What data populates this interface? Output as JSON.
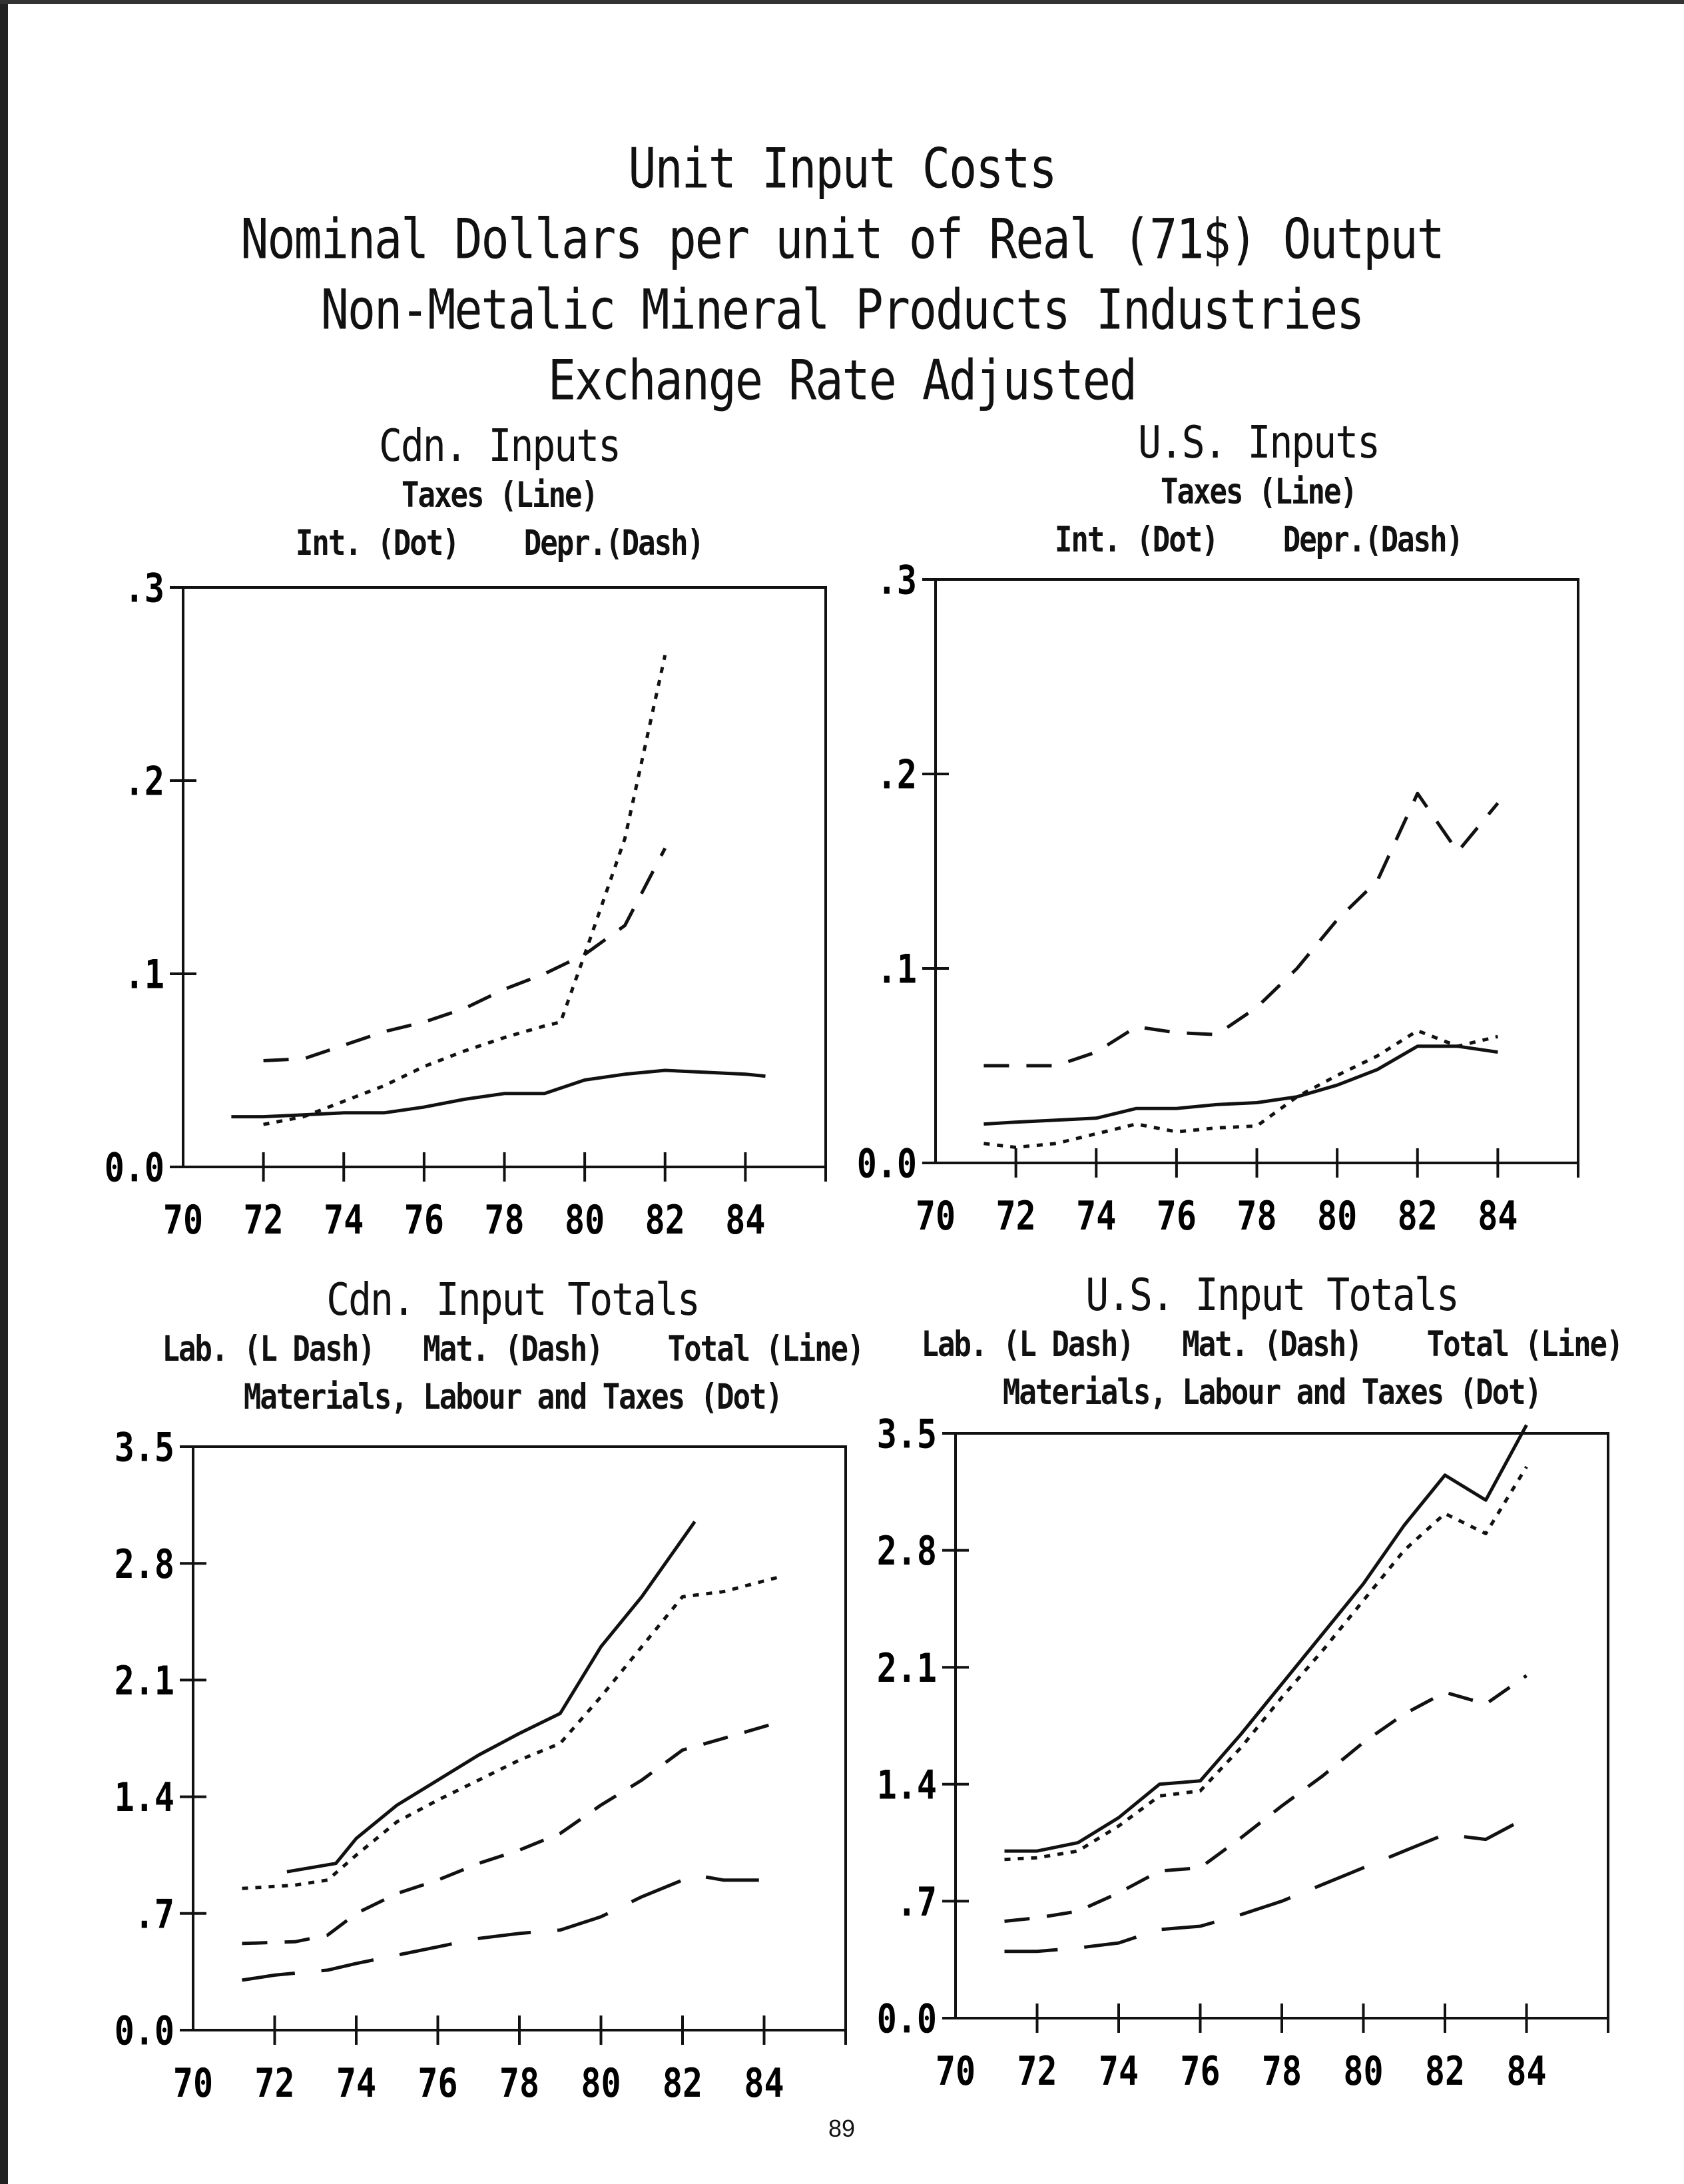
{
  "title_lines": [
    "Unit Input Costs",
    "Nominal Dollars per unit of Real (71$) Output",
    "Non-Metalic Mineral Products Industries",
    "Exchange Rate Adjusted"
  ],
  "page_number": "89",
  "chart_data": [
    {
      "type": "line",
      "title": "Cdn. Inputs",
      "subtitle_lines": [
        "Taxes (Line)"
      ],
      "legend_line": "Int. (Dot)    Depr.(Dash)",
      "x_ticks": [
        "70",
        "72",
        "74",
        "76",
        "78",
        "80",
        "82",
        "84"
      ],
      "y_ticks": [
        "0.0",
        ".1",
        ".2",
        ".3"
      ],
      "xlim": [
        70,
        86
      ],
      "ylim": [
        0,
        0.3
      ],
      "series": [
        {
          "name": "Taxes (Line)",
          "style": "solid",
          "x": [
            71.2,
            72,
            73,
            74,
            75,
            76,
            77,
            78,
            79,
            80,
            81,
            82,
            83,
            84,
            84.5
          ],
          "y": [
            0.026,
            0.026,
            0.027,
            0.028,
            0.028,
            0.031,
            0.035,
            0.038,
            0.038,
            0.045,
            0.048,
            0.05,
            0.049,
            0.048,
            0.047
          ]
        },
        {
          "name": "Int. (Dot)",
          "style": "dot",
          "x": [
            72,
            73,
            74,
            75,
            76,
            77,
            78,
            79,
            79.4,
            80,
            81,
            82
          ],
          "y": [
            0.022,
            0.026,
            0.034,
            0.042,
            0.052,
            0.06,
            0.067,
            0.073,
            0.075,
            0.11,
            0.17,
            0.265
          ]
        },
        {
          "name": "Depr.(Dash)",
          "style": "dash",
          "x": [
            72,
            73,
            74,
            75,
            76,
            77,
            78,
            79,
            80,
            81,
            82
          ],
          "y": [
            0.055,
            0.056,
            0.063,
            0.07,
            0.075,
            0.082,
            0.092,
            0.1,
            0.11,
            0.125,
            0.165
          ]
        }
      ]
    },
    {
      "type": "line",
      "title": "U.S. Inputs",
      "subtitle_lines": [
        "Taxes (Line)"
      ],
      "legend_line": "Int. (Dot)    Depr.(Dash)",
      "x_ticks": [
        "70",
        "72",
        "74",
        "76",
        "78",
        "80",
        "82",
        "84"
      ],
      "y_ticks": [
        "0.0",
        ".1",
        ".2",
        ".3"
      ],
      "xlim": [
        70,
        86
      ],
      "ylim": [
        0,
        0.3
      ],
      "series": [
        {
          "name": "Taxes (Line)",
          "style": "solid",
          "x": [
            71.2,
            72,
            73,
            74,
            75,
            76,
            77,
            78,
            79,
            80,
            81,
            82,
            83,
            84
          ],
          "y": [
            0.02,
            0.021,
            0.022,
            0.023,
            0.028,
            0.028,
            0.03,
            0.031,
            0.034,
            0.04,
            0.048,
            0.06,
            0.06,
            0.057
          ]
        },
        {
          "name": "Int. (Dot)",
          "style": "dot",
          "x": [
            71.2,
            72,
            73,
            74,
            75,
            76,
            77,
            78,
            79,
            80,
            81,
            82,
            83,
            84
          ],
          "y": [
            0.01,
            0.008,
            0.01,
            0.015,
            0.02,
            0.016,
            0.018,
            0.019,
            0.034,
            0.045,
            0.055,
            0.068,
            0.06,
            0.065
          ]
        },
        {
          "name": "Depr.(Dash)",
          "style": "dash",
          "x": [
            71.2,
            72,
            73,
            74,
            75,
            76,
            77,
            78,
            79,
            80,
            81,
            82,
            83,
            84
          ],
          "y": [
            0.05,
            0.05,
            0.05,
            0.057,
            0.07,
            0.067,
            0.066,
            0.08,
            0.1,
            0.125,
            0.145,
            0.19,
            0.16,
            0.185
          ]
        }
      ]
    },
    {
      "type": "line",
      "title": "Cdn. Input Totals",
      "subtitle_lines": [],
      "legend_line": "Lab. (L Dash)   Mat. (Dash)    Total (Line)",
      "legend_line_2": "Materials, Labour and Taxes (Dot)",
      "x_ticks": [
        "70",
        "72",
        "74",
        "76",
        "78",
        "80",
        "82",
        "84"
      ],
      "y_ticks": [
        "0.0",
        ".7",
        "1.4",
        "2.1",
        "2.8",
        "3.5"
      ],
      "xlim": [
        70,
        86
      ],
      "ylim": [
        0,
        3.5
      ],
      "series": [
        {
          "name": "Total (Line)",
          "style": "solid",
          "x": [
            72.3,
            73.5,
            74,
            75,
            76,
            77,
            78,
            79,
            80,
            81,
            82.3
          ],
          "y": [
            0.95,
            1.0,
            1.15,
            1.35,
            1.5,
            1.65,
            1.78,
            1.9,
            2.3,
            2.6,
            3.05
          ]
        },
        {
          "name": "Materials, Labour and Taxes (Dot)",
          "style": "dot",
          "x": [
            71.2,
            72.5,
            73.3,
            74,
            75,
            76,
            77,
            78,
            79,
            80,
            81,
            82,
            83,
            84.4
          ],
          "y": [
            0.85,
            0.87,
            0.9,
            1.05,
            1.25,
            1.38,
            1.5,
            1.62,
            1.72,
            2.0,
            2.3,
            2.6,
            2.63,
            2.72
          ]
        },
        {
          "name": "Mat. (Dash)",
          "style": "dash",
          "x": [
            71.2,
            72.5,
            73.3,
            74,
            75,
            76,
            77,
            78,
            79,
            80,
            81,
            82,
            83,
            84.4
          ],
          "y": [
            0.52,
            0.53,
            0.57,
            0.7,
            0.82,
            0.9,
            1.0,
            1.08,
            1.18,
            1.35,
            1.5,
            1.68,
            1.75,
            1.85
          ]
        },
        {
          "name": "Lab. (L Dash)",
          "style": "longdash",
          "x": [
            71.2,
            72,
            73.3,
            74,
            75,
            76,
            77,
            78,
            79,
            80,
            81,
            82.3,
            83,
            84.4
          ],
          "y": [
            0.3,
            0.33,
            0.36,
            0.4,
            0.45,
            0.5,
            0.55,
            0.58,
            0.6,
            0.68,
            0.8,
            0.93,
            0.9,
            0.9
          ]
        }
      ]
    },
    {
      "type": "line",
      "title": "U.S. Input Totals",
      "subtitle_lines": [],
      "legend_line": "Lab. (L Dash)   Mat. (Dash)    Total (Line)",
      "legend_line_2": "Materials, Labour and Taxes (Dot)",
      "x_ticks": [
        "70",
        "72",
        "74",
        "76",
        "78",
        "80",
        "82",
        "84"
      ],
      "y_ticks": [
        "0.0",
        ".7",
        "1.4",
        "2.1",
        "2.8",
        "3.5"
      ],
      "xlim": [
        70,
        86
      ],
      "ylim": [
        0,
        3.5
      ],
      "series": [
        {
          "name": "Total (Line)",
          "style": "solid",
          "x": [
            71.2,
            72,
            73,
            74,
            75,
            76,
            77,
            78,
            79,
            80,
            81,
            82,
            83,
            84
          ],
          "y": [
            1.0,
            1.0,
            1.05,
            1.2,
            1.4,
            1.42,
            1.7,
            2.0,
            2.3,
            2.6,
            2.95,
            3.25,
            3.1,
            3.55
          ]
        },
        {
          "name": "Materials, Labour and Taxes (Dot)",
          "style": "dot",
          "x": [
            71.2,
            72,
            73,
            74,
            75,
            76,
            77,
            78,
            79,
            80,
            81,
            82,
            83,
            84
          ],
          "y": [
            0.95,
            0.96,
            1.0,
            1.15,
            1.33,
            1.36,
            1.62,
            1.92,
            2.2,
            2.5,
            2.8,
            3.02,
            2.9,
            3.3
          ]
        },
        {
          "name": "Mat. (Dash)",
          "style": "dash",
          "x": [
            71.2,
            72,
            73,
            74,
            75,
            76,
            77,
            78,
            79,
            80,
            81,
            82,
            83,
            84
          ],
          "y": [
            0.58,
            0.6,
            0.64,
            0.75,
            0.88,
            0.9,
            1.08,
            1.27,
            1.45,
            1.65,
            1.82,
            1.95,
            1.88,
            2.05
          ]
        },
        {
          "name": "Lab. (L Dash)",
          "style": "longdash",
          "x": [
            71.2,
            72,
            73,
            74,
            75,
            76,
            77,
            78,
            79,
            80,
            81,
            82,
            83,
            84
          ],
          "y": [
            0.4,
            0.4,
            0.42,
            0.45,
            0.53,
            0.55,
            0.62,
            0.7,
            0.8,
            0.9,
            1.0,
            1.1,
            1.07,
            1.2
          ]
        }
      ]
    }
  ]
}
